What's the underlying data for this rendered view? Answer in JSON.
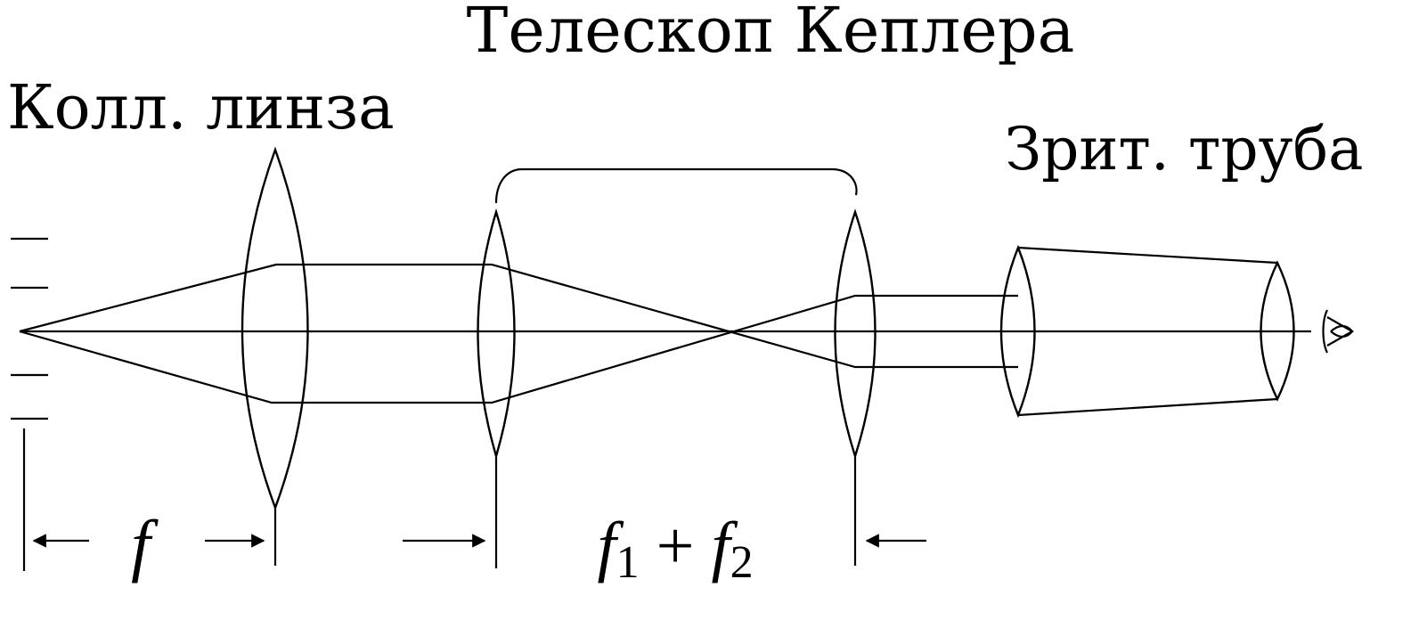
{
  "labels": {
    "telescope": "Телескоп Кеплера",
    "collimator": "Колл. линза",
    "viewer": "Зрит. труба"
  },
  "dimensions": {
    "focal_symbol": "f",
    "sum_f1": "f",
    "sum_sub1": "1",
    "sum_plus": " + ",
    "sum_f2": "f",
    "sum_sub2": "2"
  },
  "icons": {
    "eye": "eye-icon"
  }
}
